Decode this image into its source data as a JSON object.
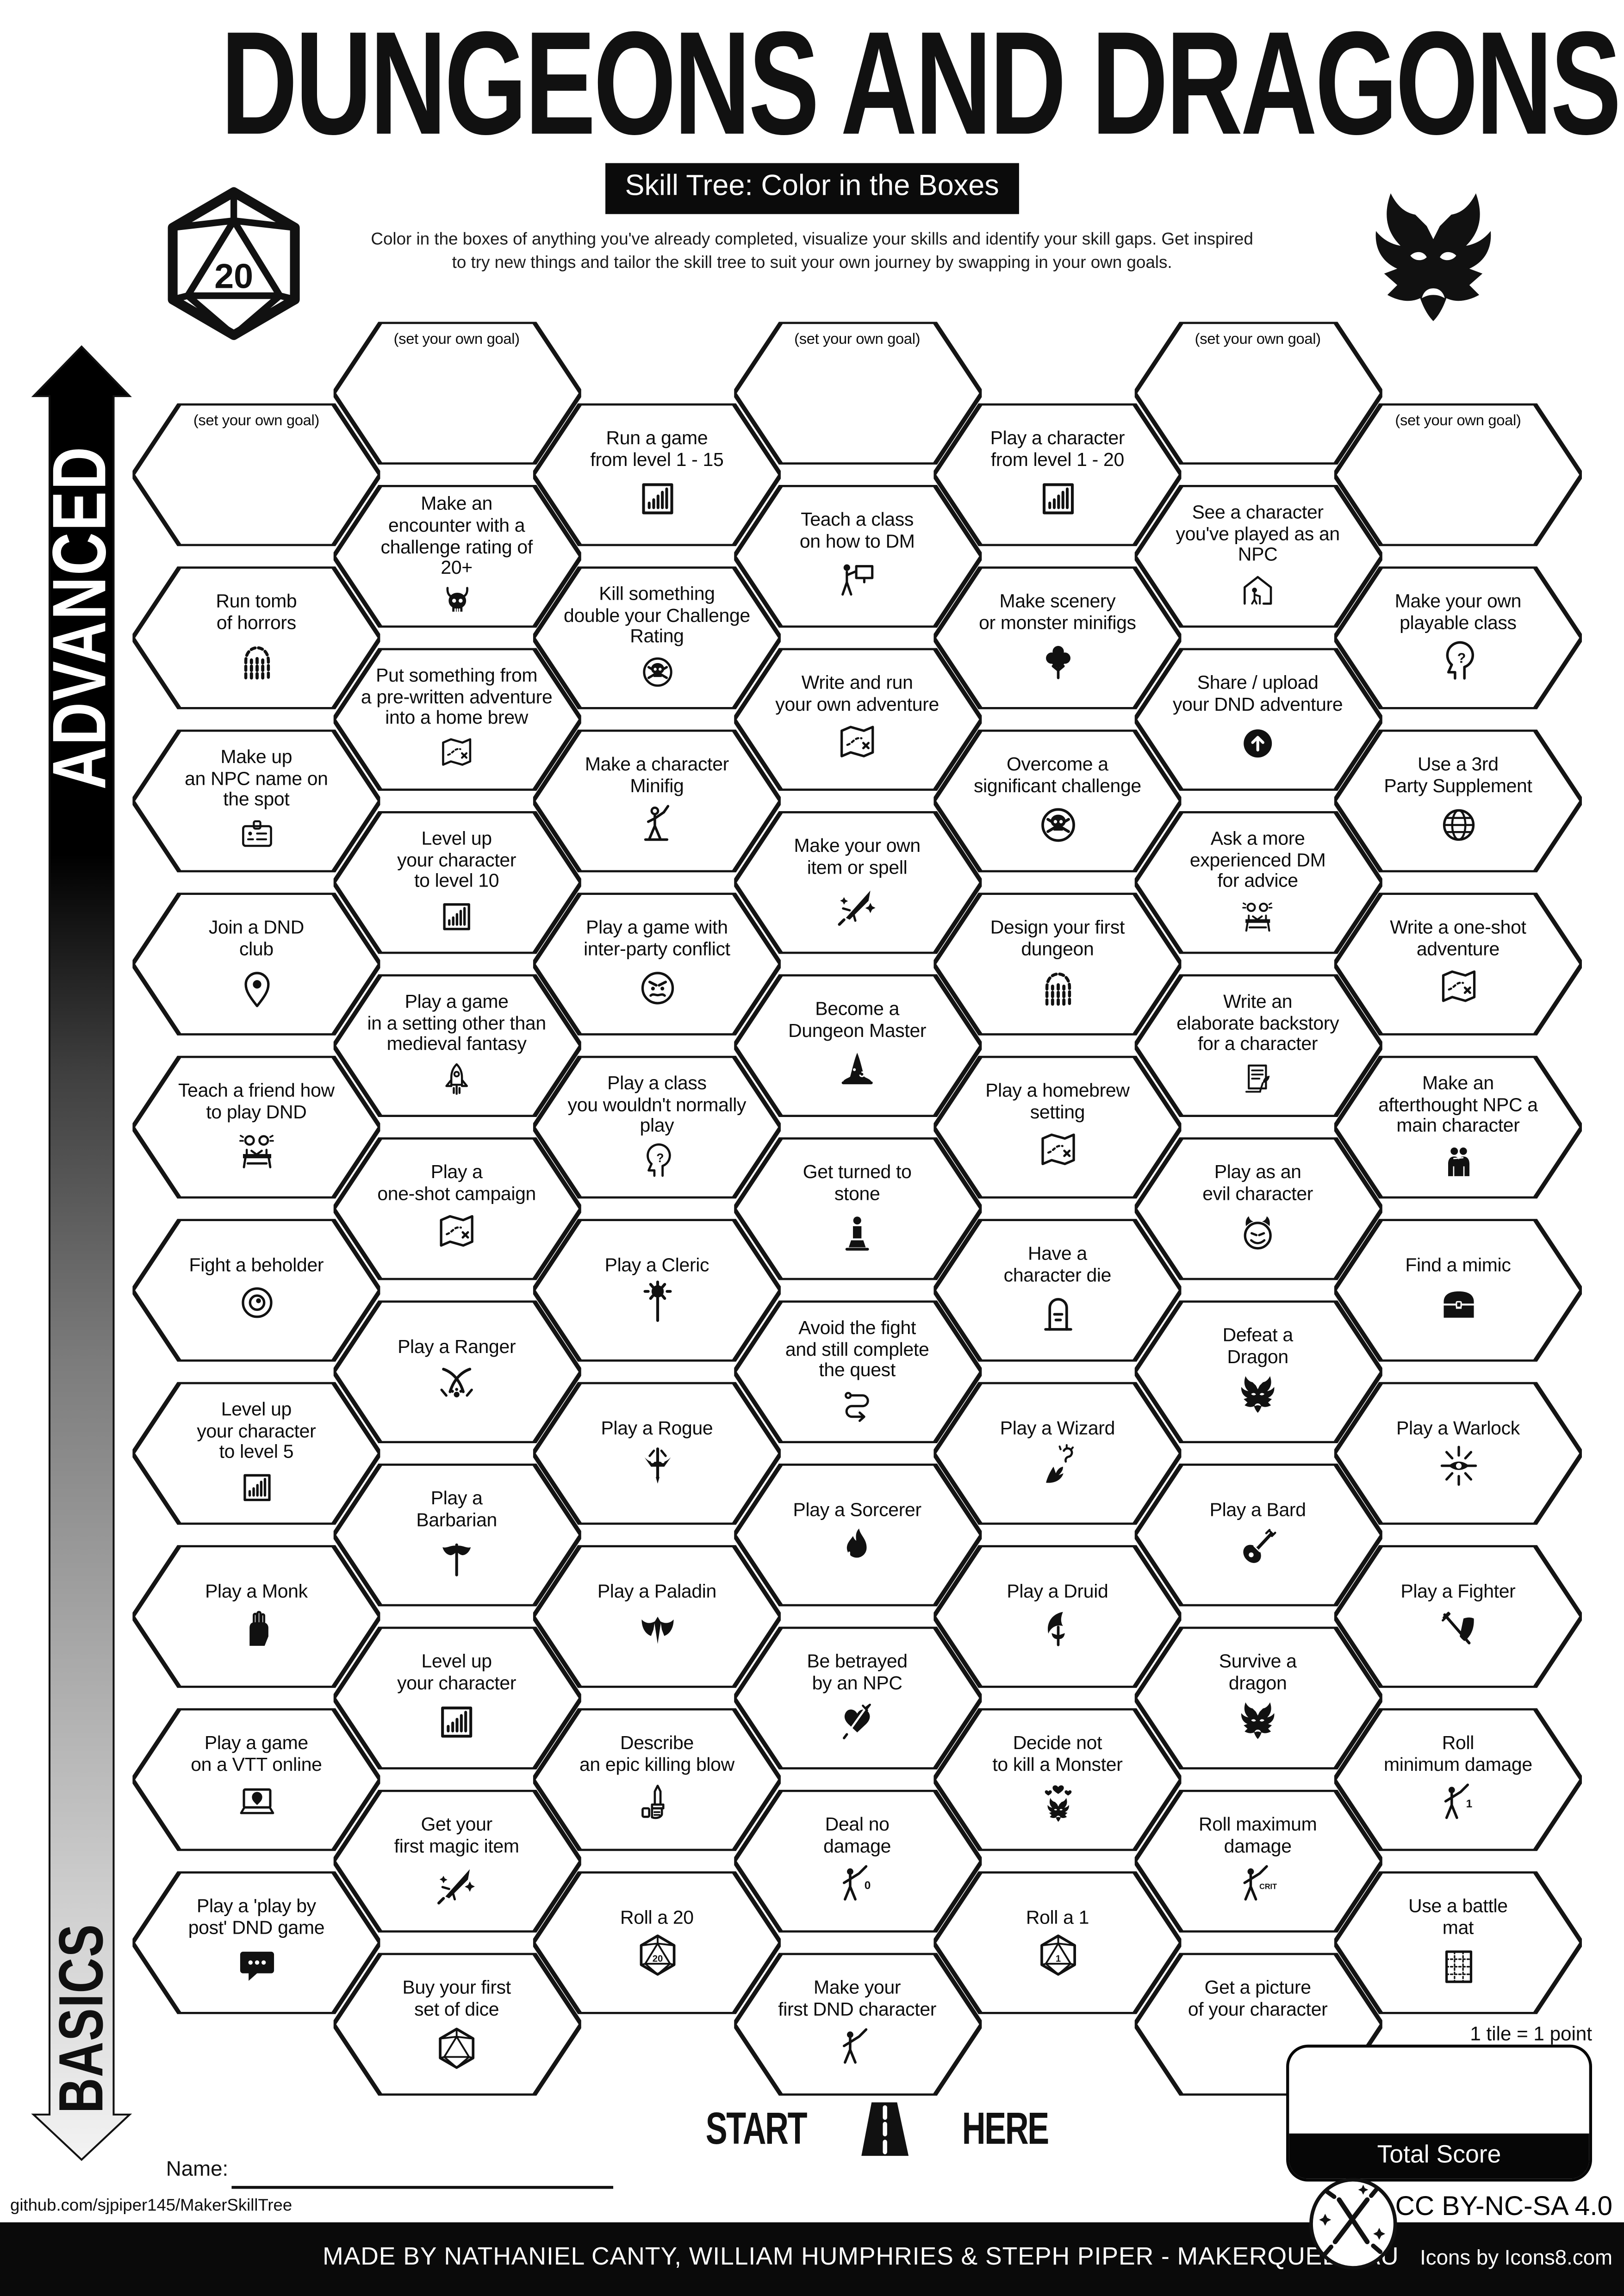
{
  "colors": {
    "ink": "#111111",
    "paper": "#ffffff",
    "bar": "#0a0a0a"
  },
  "header": {
    "title": "DUNGEONS AND DRAGONS",
    "subtitle": "Skill Tree: Color in the Boxes",
    "description_line1": "Color in the boxes of anything you've already completed, visualize your skills and identify your skill gaps.  Get inspired",
    "description_line2": "to try new things and tailor the skill tree to suit your own journey by swapping in your own goals.",
    "d20_label": "20"
  },
  "side": {
    "advanced": "ADVANCED",
    "basics": "BASICS"
  },
  "grid": {
    "set_goal_label": "(set your own goal)",
    "columns": [
      {
        "hexes": [
          {
            "label": "(set your own goal)",
            "goal": true
          },
          {
            "label": "Run tomb\nof horrors",
            "icon": "arch"
          },
          {
            "label": "Make up\nan NPC name on\nthe spot",
            "icon": "id-card"
          },
          {
            "label": "Join a DND\nclub",
            "icon": "map-pin"
          },
          {
            "label": "Teach a friend how\nto play DND",
            "icon": "duo-desk"
          },
          {
            "label": "Fight a beholder",
            "icon": "eye"
          },
          {
            "label": "Level up\nyour character\nto level 5",
            "icon": "chart"
          },
          {
            "label": "Play a Monk",
            "icon": "fist"
          },
          {
            "label": "Play a game\non a VTT online",
            "icon": "laptop-pin"
          },
          {
            "label": "Play a 'play by\npost' DND game",
            "icon": "chat-bubble"
          }
        ]
      },
      {
        "hexes": [
          {
            "label": "(set your own goal)",
            "goal": true
          },
          {
            "label": "Make an\nencounter with a\nchallenge rating of\n20+",
            "icon": "demon-skull"
          },
          {
            "label": "Put something from\na pre-written adventure\ninto a home brew",
            "icon": "map"
          },
          {
            "label": "Level up\nyour character\nto level 10",
            "icon": "chart"
          },
          {
            "label": "Play a game\nin a setting other than\nmedieval fantasy",
            "icon": "rocket"
          },
          {
            "label": "Play a\none-shot campaign",
            "icon": "map"
          },
          {
            "label": "Play a Ranger",
            "icon": "scimitars"
          },
          {
            "label": "Play a\nBarbarian",
            "icon": "axe"
          },
          {
            "label": "Level up\nyour character",
            "icon": "chart"
          },
          {
            "label": "Get your\nfirst magic item",
            "icon": "magic-sword"
          },
          {
            "label": "Buy your first\nset of dice",
            "icon": "d20"
          }
        ]
      },
      {
        "hexes": [
          {
            "label": "Run a game\nfrom level 1 - 15",
            "icon": "chart"
          },
          {
            "label": "Kill something\ndouble your Challenge\nRating",
            "icon": "skull-crossbones"
          },
          {
            "label": "Make a character\nMinifig",
            "icon": "minifig"
          },
          {
            "label": "Play a game with\ninter-party conflict",
            "icon": "angry-face"
          },
          {
            "label": "Play a class\nyou wouldn't normally\nplay",
            "icon": "head-question"
          },
          {
            "label": "Play a Cleric",
            "icon": "mace"
          },
          {
            "label": "Play a Rogue",
            "icon": "dagger-mask"
          },
          {
            "label": "Play a Paladin",
            "icon": "winged-helm"
          },
          {
            "label": "Describe\nan epic killing blow",
            "icon": "hand-dagger"
          },
          {
            "label": "Roll a 20",
            "icon": "d20",
            "icon_text": "20"
          }
        ]
      },
      {
        "hexes": [
          {
            "label": "(set your own goal)",
            "goal": true
          },
          {
            "label": "Teach a class\non how to DM",
            "icon": "teacher"
          },
          {
            "label": "Write and run\nyour own adventure",
            "icon": "map"
          },
          {
            "label": "Make your own\nitem or spell",
            "icon": "magic-sword"
          },
          {
            "label": "Become a\nDungeon Master",
            "icon": "wizard-hat"
          },
          {
            "label": "Get turned to\nstone",
            "icon": "statue"
          },
          {
            "label": "Avoid the fight\nand still complete\nthe quest",
            "icon": "route"
          },
          {
            "label": "Play a Sorcerer",
            "icon": "flame"
          },
          {
            "label": "Be betrayed\nby an NPC",
            "icon": "heart-dagger"
          },
          {
            "label": "Deal no\ndamage",
            "icon": "figure-sword",
            "icon_text": "0"
          },
          {
            "label": "Make your\nfirst DND character",
            "icon": "figure-sword"
          }
        ]
      },
      {
        "hexes": [
          {
            "label": "Play a character\nfrom level 1 - 20",
            "icon": "chart"
          },
          {
            "label": "Make scenery\nor monster minifigs",
            "icon": "tree"
          },
          {
            "label": "Overcome a\nsignificant challenge",
            "icon": "skull-crossbones"
          },
          {
            "label": "Design your first\ndungeon",
            "icon": "arch"
          },
          {
            "label": "Play a homebrew\nsetting",
            "icon": "map"
          },
          {
            "label": "Have a\ncharacter die",
            "icon": "tombstone"
          },
          {
            "label": "Play a Wizard",
            "icon": "magic-hand"
          },
          {
            "label": "Play a Druid",
            "icon": "sickle"
          },
          {
            "label": "Decide not\nto kill a Monster",
            "icon": "dragon-hearts"
          },
          {
            "label": "Roll a 1",
            "icon": "d20",
            "icon_text": "1"
          }
        ]
      },
      {
        "hexes": [
          {
            "label": "(set your own goal)",
            "goal": true
          },
          {
            "label": "See a character\nyou've played as an\nNPC",
            "icon": "house-person"
          },
          {
            "label": "Share / upload\nyour DND adventure",
            "icon": "upload"
          },
          {
            "label": "Ask a more\nexperienced DM\nfor advice",
            "icon": "duo-desk"
          },
          {
            "label": "Write an\nelaborate backstory\nfor a character",
            "icon": "scroll-quill"
          },
          {
            "label": "Play as an\nevil character",
            "icon": "devil-face"
          },
          {
            "label": "Defeat a\nDragon",
            "icon": "dragon"
          },
          {
            "label": "Play a Bard",
            "icon": "lute"
          },
          {
            "label": "Survive a\ndragon",
            "icon": "dragon"
          },
          {
            "label": "Roll maximum\ndamage",
            "icon": "figure-sword",
            "icon_text": "CRIT"
          },
          {
            "label": "Get a picture\nof your character",
            "icon": "portrait"
          }
        ]
      },
      {
        "hexes": [
          {
            "label": "(set your own goal)",
            "goal": true
          },
          {
            "label": "Make your own\nplayable class",
            "icon": "head-question"
          },
          {
            "label": "Use a 3rd\nParty Supplement",
            "icon": "globe"
          },
          {
            "label": "Write a one-shot\nadventure",
            "icon": "map"
          },
          {
            "label": "Make an\nafterthought NPC a\nmain character",
            "icon": "duo"
          },
          {
            "label": "Find a mimic",
            "icon": "chest"
          },
          {
            "label": "Play a Warlock",
            "icon": "warlock-eye"
          },
          {
            "label": "Play a Fighter",
            "icon": "sword-shield"
          },
          {
            "label": "Roll\nminimum damage",
            "icon": "figure-sword",
            "icon_text": "1"
          },
          {
            "label": "Use a battle\nmat",
            "icon": "battle-mat"
          }
        ]
      }
    ]
  },
  "footer": {
    "start_label": "START",
    "here_label": "HERE",
    "name_label": "Name:",
    "url": "github.com/sjpiper145/MakerSkillTree",
    "tile_points": "1 tile = 1 point",
    "total_score_label": "Total Score",
    "license": "CC BY-NC-SA 4.0",
    "made_by": "MADE BY NATHANIEL CANTY, WILLIAM HUMPHRIES & STEPH PIPER  -  MAKERQUEEN AU",
    "icons_credit": "Icons by Icons8.com"
  }
}
